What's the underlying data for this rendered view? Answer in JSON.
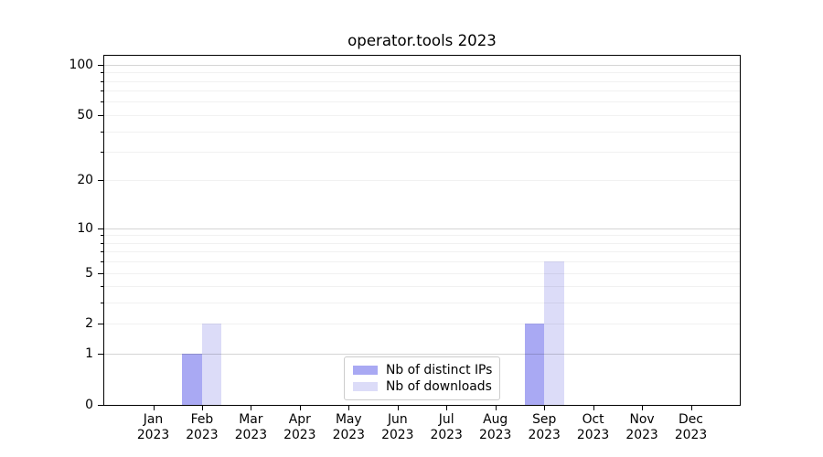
{
  "title": "operator.tools 2023",
  "chart_data": {
    "type": "bar",
    "title": "operator.tools 2023",
    "xlabel": "",
    "ylabel": "",
    "categories": [
      "Jan 2023",
      "Feb 2023",
      "Mar 2023",
      "Apr 2023",
      "May 2023",
      "Jun 2023",
      "Jul 2023",
      "Aug 2023",
      "Sep 2023",
      "Oct 2023",
      "Nov 2023",
      "Dec 2023"
    ],
    "series": [
      {
        "name": "Nb of distinct IPs",
        "color": "#a9a9f3",
        "values": [
          0,
          1,
          0,
          0,
          0,
          0,
          0,
          0,
          2,
          0,
          0,
          0
        ]
      },
      {
        "name": "Nb of downloads",
        "color": "#dcdcf8",
        "values": [
          0,
          2,
          0,
          0,
          0,
          0,
          0,
          0,
          6,
          0,
          0,
          0
        ]
      }
    ],
    "y_scale": "log1p",
    "ylim": [
      0,
      113
    ],
    "y_tick_values": [
      100,
      50,
      20,
      10,
      5,
      2,
      1,
      0
    ],
    "y_tick_labels": [
      "100",
      "50",
      "20",
      "10",
      "5",
      "2",
      "1",
      "0"
    ],
    "y_major_gridlines": [
      1,
      10,
      100
    ],
    "y_minor_gridlines": [
      2,
      3,
      4,
      5,
      6,
      7,
      8,
      9,
      20,
      30,
      40,
      50,
      60,
      70,
      80,
      90
    ],
    "grid": true,
    "legend": {
      "position": "lower center",
      "entries": [
        "Nb of distinct IPs",
        "Nb of downloads"
      ]
    }
  }
}
